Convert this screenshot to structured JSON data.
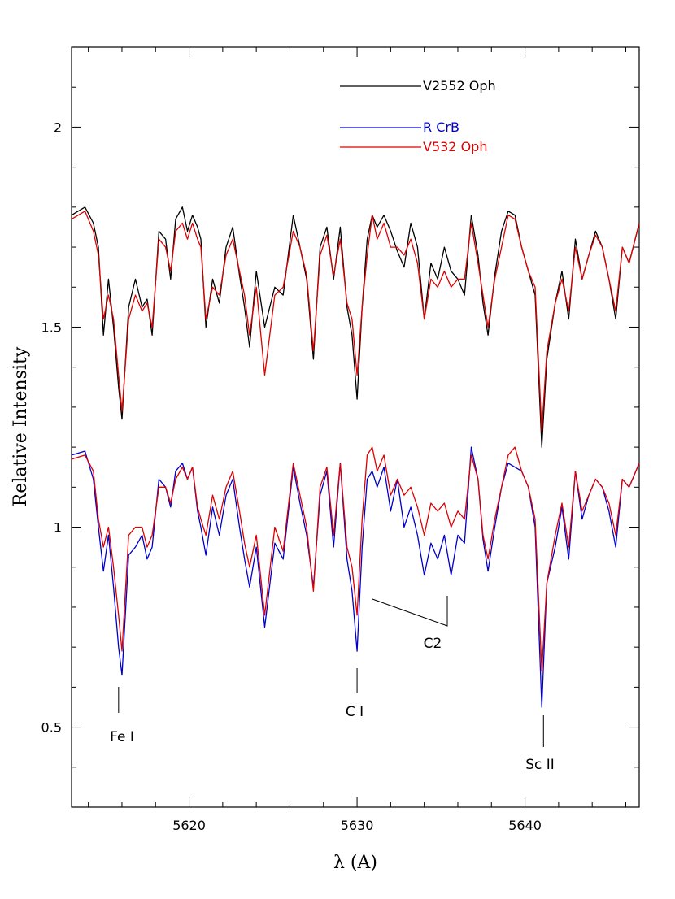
{
  "chart_data": {
    "type": "line",
    "title": "",
    "xlabel": "λ (A)",
    "ylabel": "Relative Intensity",
    "xlim": [
      5613.0,
      5646.8
    ],
    "ylim": [
      0.3,
      2.2
    ],
    "x_ticks": [
      5620,
      5630,
      5640
    ],
    "y_ticks": [
      0.5,
      1,
      1.5,
      2
    ],
    "x_tick_labels": [
      "5620",
      "5630",
      "5640"
    ],
    "y_tick_labels": [
      "0.5",
      "1",
      "1.5",
      "2"
    ],
    "grid": false,
    "legend_position": "top-center",
    "legend": [
      {
        "name": "V2552 Oph",
        "color": "#000000"
      },
      {
        "name": "R CrB",
        "color": "#0000cc"
      },
      {
        "name": "V532 Oph",
        "color": "#dd0000"
      }
    ],
    "series": [
      {
        "name": "V2552 Oph",
        "color": "#000000",
        "x": [
          5613.0,
          5613.8,
          5614.3,
          5614.6,
          5614.9,
          5615.2,
          5615.5,
          5615.8,
          5616.0,
          5616.4,
          5616.8,
          5617.2,
          5617.5,
          5617.8,
          5618.2,
          5618.6,
          5618.9,
          5619.2,
          5619.6,
          5619.9,
          5620.2,
          5620.5,
          5620.7,
          5621.0,
          5621.4,
          5621.8,
          5622.2,
          5622.6,
          5623.0,
          5623.3,
          5623.6,
          5624.0,
          5624.5,
          5625.1,
          5625.6,
          5626.2,
          5626.6,
          5627.0,
          5627.4,
          5627.8,
          5628.2,
          5628.6,
          5629.0,
          5629.4,
          5629.7,
          5630.0,
          5630.3,
          5630.6,
          5630.9,
          5631.2,
          5631.6,
          5632.0,
          5632.4,
          5632.8,
          5633.2,
          5633.6,
          5634.0,
          5634.4,
          5634.8,
          5635.2,
          5635.6,
          5636.0,
          5636.4,
          5636.8,
          5637.2,
          5637.5,
          5637.8,
          5638.2,
          5638.6,
          5639.0,
          5639.4,
          5639.8,
          5640.2,
          5640.6,
          5641.0,
          5641.3,
          5641.8,
          5642.2,
          5642.6,
          5643.0,
          5643.4,
          5643.8,
          5644.2,
          5644.6,
          5645.0,
          5645.4,
          5645.8,
          5646.2,
          5646.8
        ],
        "values": [
          1.78,
          1.8,
          1.76,
          1.7,
          1.48,
          1.62,
          1.5,
          1.35,
          1.27,
          1.55,
          1.62,
          1.55,
          1.57,
          1.48,
          1.74,
          1.72,
          1.62,
          1.77,
          1.8,
          1.74,
          1.78,
          1.75,
          1.72,
          1.5,
          1.62,
          1.56,
          1.7,
          1.75,
          1.63,
          1.55,
          1.45,
          1.64,
          1.5,
          1.6,
          1.58,
          1.78,
          1.7,
          1.62,
          1.42,
          1.7,
          1.75,
          1.62,
          1.75,
          1.55,
          1.48,
          1.32,
          1.55,
          1.72,
          1.78,
          1.75,
          1.78,
          1.74,
          1.69,
          1.65,
          1.76,
          1.7,
          1.52,
          1.66,
          1.62,
          1.7,
          1.64,
          1.62,
          1.58,
          1.78,
          1.68,
          1.56,
          1.48,
          1.63,
          1.74,
          1.79,
          1.78,
          1.7,
          1.64,
          1.58,
          1.2,
          1.42,
          1.56,
          1.64,
          1.52,
          1.72,
          1.62,
          1.68,
          1.74,
          1.7,
          1.62,
          1.52,
          1.7,
          1.66,
          1.76
        ]
      },
      {
        "name": "V532 Oph",
        "color": "#dd0000",
        "x": [
          5613.0,
          5613.8,
          5614.3,
          5614.6,
          5614.9,
          5615.2,
          5615.5,
          5615.8,
          5616.0,
          5616.4,
          5616.8,
          5617.2,
          5617.5,
          5617.8,
          5618.2,
          5618.6,
          5618.9,
          5619.2,
          5619.6,
          5619.9,
          5620.2,
          5620.5,
          5620.7,
          5621.0,
          5621.4,
          5621.8,
          5622.2,
          5622.6,
          5623.0,
          5623.3,
          5623.6,
          5624.0,
          5624.5,
          5625.1,
          5625.6,
          5626.2,
          5626.6,
          5627.0,
          5627.4,
          5627.8,
          5628.2,
          5628.6,
          5629.0,
          5629.4,
          5629.7,
          5630.0,
          5630.3,
          5630.6,
          5630.9,
          5631.2,
          5631.6,
          5632.0,
          5632.4,
          5632.8,
          5633.2,
          5633.6,
          5634.0,
          5634.4,
          5634.8,
          5635.2,
          5635.6,
          5636.0,
          5636.4,
          5636.8,
          5637.2,
          5637.5,
          5637.8,
          5638.2,
          5638.6,
          5639.0,
          5639.4,
          5639.8,
          5640.2,
          5640.6,
          5641.0,
          5641.3,
          5641.8,
          5642.2,
          5642.6,
          5643.0,
          5643.4,
          5643.8,
          5644.2,
          5644.6,
          5645.0,
          5645.4,
          5645.8,
          5646.2,
          5646.8
        ],
        "values": [
          1.77,
          1.79,
          1.74,
          1.68,
          1.52,
          1.58,
          1.52,
          1.38,
          1.29,
          1.52,
          1.58,
          1.54,
          1.56,
          1.5,
          1.72,
          1.7,
          1.64,
          1.74,
          1.76,
          1.72,
          1.76,
          1.72,
          1.7,
          1.52,
          1.6,
          1.58,
          1.68,
          1.72,
          1.64,
          1.58,
          1.48,
          1.6,
          1.38,
          1.58,
          1.6,
          1.74,
          1.7,
          1.63,
          1.44,
          1.68,
          1.73,
          1.63,
          1.72,
          1.56,
          1.52,
          1.38,
          1.55,
          1.68,
          1.78,
          1.72,
          1.76,
          1.7,
          1.7,
          1.68,
          1.72,
          1.66,
          1.52,
          1.62,
          1.6,
          1.64,
          1.6,
          1.62,
          1.62,
          1.76,
          1.66,
          1.58,
          1.5,
          1.62,
          1.7,
          1.78,
          1.77,
          1.7,
          1.64,
          1.6,
          1.24,
          1.44,
          1.56,
          1.62,
          1.54,
          1.7,
          1.62,
          1.68,
          1.73,
          1.7,
          1.62,
          1.54,
          1.7,
          1.66,
          1.76
        ]
      },
      {
        "name": "R CrB",
        "color": "#0000cc",
        "x": [
          5613.0,
          5613.8,
          5614.3,
          5614.6,
          5614.9,
          5615.2,
          5615.5,
          5615.8,
          5616.0,
          5616.4,
          5616.8,
          5617.2,
          5617.5,
          5617.8,
          5618.2,
          5618.6,
          5618.9,
          5619.2,
          5619.6,
          5619.9,
          5620.2,
          5620.5,
          5620.7,
          5621.0,
          5621.4,
          5621.8,
          5622.2,
          5622.6,
          5623.0,
          5623.3,
          5623.6,
          5624.0,
          5624.5,
          5625.1,
          5625.6,
          5626.2,
          5626.6,
          5627.0,
          5627.4,
          5627.8,
          5628.2,
          5628.6,
          5629.0,
          5629.4,
          5629.7,
          5630.0,
          5630.3,
          5630.6,
          5630.9,
          5631.2,
          5631.6,
          5632.0,
          5632.4,
          5632.8,
          5633.2,
          5633.6,
          5634.0,
          5634.4,
          5634.8,
          5635.2,
          5635.6,
          5636.0,
          5636.4,
          5636.8,
          5637.2,
          5637.5,
          5637.8,
          5638.2,
          5638.6,
          5639.0,
          5639.4,
          5639.8,
          5640.2,
          5640.6,
          5641.0,
          5641.3,
          5641.8,
          5642.2,
          5642.6,
          5643.0,
          5643.4,
          5643.8,
          5644.2,
          5644.6,
          5645.0,
          5645.4,
          5645.8,
          5646.2,
          5646.8
        ],
        "values": [
          1.18,
          1.19,
          1.12,
          1.0,
          0.89,
          0.98,
          0.85,
          0.7,
          0.63,
          0.93,
          0.95,
          0.98,
          0.92,
          0.95,
          1.12,
          1.1,
          1.05,
          1.14,
          1.16,
          1.12,
          1.15,
          1.04,
          1.0,
          0.93,
          1.05,
          0.98,
          1.08,
          1.12,
          1.0,
          0.92,
          0.85,
          0.95,
          0.75,
          0.96,
          0.92,
          1.15,
          1.06,
          0.98,
          0.85,
          1.08,
          1.14,
          0.95,
          1.16,
          0.92,
          0.84,
          0.69,
          0.95,
          1.12,
          1.14,
          1.1,
          1.15,
          1.04,
          1.12,
          1.0,
          1.05,
          0.98,
          0.88,
          0.96,
          0.92,
          0.98,
          0.88,
          0.98,
          0.96,
          1.2,
          1.12,
          0.97,
          0.89,
          1.0,
          1.1,
          1.16,
          1.15,
          1.14,
          1.1,
          1.0,
          0.55,
          0.86,
          0.95,
          1.05,
          0.92,
          1.14,
          1.02,
          1.08,
          1.12,
          1.1,
          1.04,
          0.95,
          1.12,
          1.1,
          1.16
        ]
      },
      {
        "name": "V532 Oph",
        "color": "#dd0000",
        "x": [
          5613.0,
          5613.8,
          5614.3,
          5614.6,
          5614.9,
          5615.2,
          5615.5,
          5615.8,
          5616.0,
          5616.4,
          5616.8,
          5617.2,
          5617.5,
          5617.8,
          5618.2,
          5618.6,
          5618.9,
          5619.2,
          5619.6,
          5619.9,
          5620.2,
          5620.5,
          5620.7,
          5621.0,
          5621.4,
          5621.8,
          5622.2,
          5622.6,
          5623.0,
          5623.3,
          5623.6,
          5624.0,
          5624.5,
          5625.1,
          5625.6,
          5626.2,
          5626.6,
          5627.0,
          5627.4,
          5627.8,
          5628.2,
          5628.6,
          5629.0,
          5629.4,
          5629.7,
          5630.0,
          5630.3,
          5630.6,
          5630.9,
          5631.2,
          5631.6,
          5632.0,
          5632.4,
          5632.8,
          5633.2,
          5633.6,
          5634.0,
          5634.4,
          5634.8,
          5635.2,
          5635.6,
          5636.0,
          5636.4,
          5636.8,
          5637.2,
          5637.5,
          5637.8,
          5638.2,
          5638.6,
          5639.0,
          5639.4,
          5639.8,
          5640.2,
          5640.6,
          5641.0,
          5641.3,
          5641.8,
          5642.2,
          5642.6,
          5643.0,
          5643.4,
          5643.8,
          5644.2,
          5644.6,
          5645.0,
          5645.4,
          5645.8,
          5646.2,
          5646.8
        ],
        "values": [
          1.17,
          1.18,
          1.14,
          1.02,
          0.95,
          1.0,
          0.9,
          0.78,
          0.69,
          0.98,
          1.0,
          1.0,
          0.95,
          0.98,
          1.1,
          1.1,
          1.06,
          1.12,
          1.15,
          1.12,
          1.15,
          1.05,
          1.02,
          0.98,
          1.08,
          1.02,
          1.1,
          1.14,
          1.04,
          0.96,
          0.9,
          0.98,
          0.78,
          1.0,
          0.94,
          1.16,
          1.08,
          1.0,
          0.84,
          1.1,
          1.15,
          0.98,
          1.16,
          0.95,
          0.9,
          0.78,
          1.02,
          1.18,
          1.2,
          1.14,
          1.18,
          1.08,
          1.12,
          1.08,
          1.1,
          1.05,
          0.98,
          1.06,
          1.04,
          1.06,
          1.0,
          1.04,
          1.02,
          1.18,
          1.12,
          0.98,
          0.92,
          1.02,
          1.1,
          1.18,
          1.2,
          1.14,
          1.1,
          1.02,
          0.64,
          0.86,
          0.98,
          1.06,
          0.95,
          1.14,
          1.04,
          1.08,
          1.12,
          1.1,
          1.06,
          0.98,
          1.12,
          1.1,
          1.16
        ]
      }
    ],
    "annotations": [
      {
        "text": "Fe I",
        "x": 5615.8
      },
      {
        "text": "C I",
        "x": 5630.0
      },
      {
        "text": "Sc II",
        "x": 5641.1
      },
      {
        "text": "C2",
        "x": 5634.4
      }
    ]
  }
}
